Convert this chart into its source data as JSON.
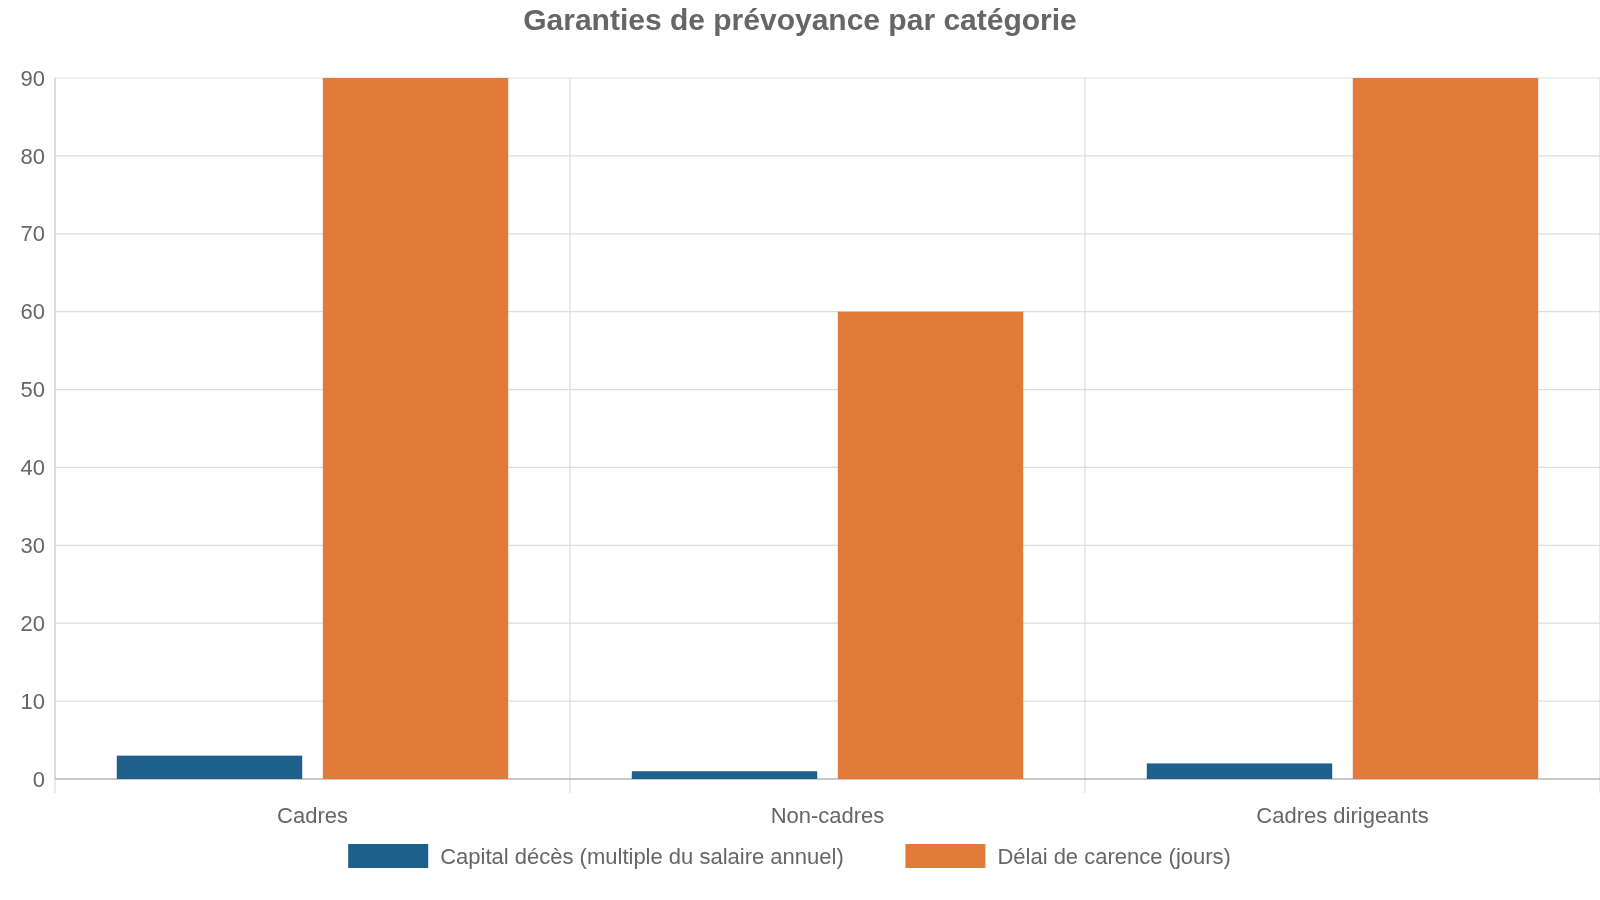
{
  "chart_data": {
    "type": "bar",
    "title": "Garanties de prévoyance par catégorie",
    "categories": [
      "Cadres",
      "Non-cadres",
      "Cadres dirigeants"
    ],
    "series": [
      {
        "name": "Capital décès (multiple du salaire annuel)",
        "color": "#1f5f8b",
        "values": [
          3,
          1,
          2
        ]
      },
      {
        "name": "Délai de carence (jours)",
        "color": "#e07b39",
        "values": [
          90,
          60,
          90
        ]
      }
    ],
    "ylim": [
      0,
      90
    ],
    "yticks": [
      0,
      10,
      20,
      30,
      40,
      50,
      60,
      70,
      80,
      90
    ],
    "grid": true,
    "legend": "bottom"
  }
}
